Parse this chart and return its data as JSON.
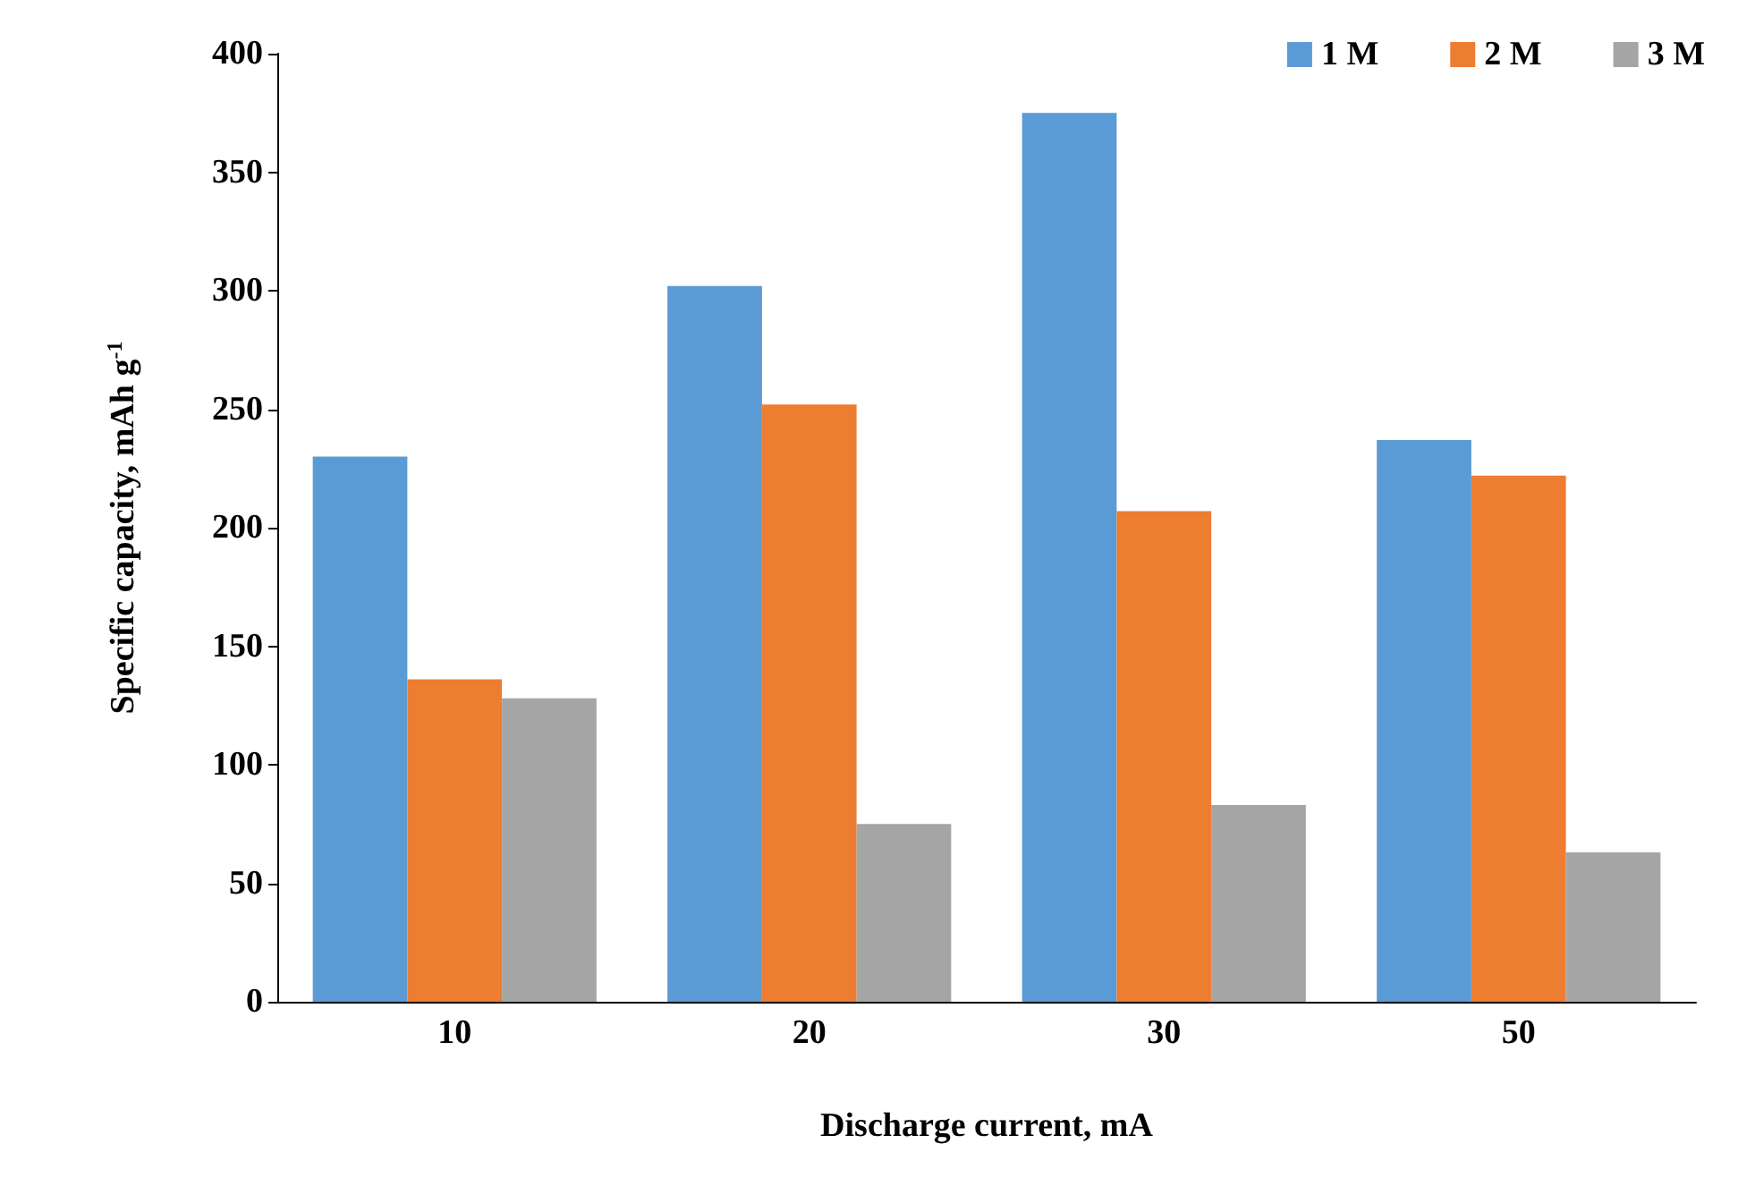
{
  "chart_data": {
    "type": "bar",
    "xlabel": "Discharge current, mA",
    "ylabel": "Specific capacity, mAh g$^{-1}$",
    "categories": [
      "10",
      "20",
      "30",
      "50"
    ],
    "series": [
      {
        "name": "1 M",
        "color": "#5b9bd5",
        "values": [
          230,
          302,
          375,
          237
        ]
      },
      {
        "name": "2 M",
        "color": "#ed7d31",
        "values": [
          136,
          252,
          207,
          222
        ]
      },
      {
        "name": "3 M",
        "color": "#a5a5a5",
        "values": [
          128,
          75,
          83,
          63
        ]
      }
    ],
    "ylim": [
      0,
      400
    ],
    "yticks": [
      0,
      50,
      100,
      150,
      200,
      250,
      300,
      350,
      400
    ],
    "grid": false,
    "legend": "top right"
  }
}
